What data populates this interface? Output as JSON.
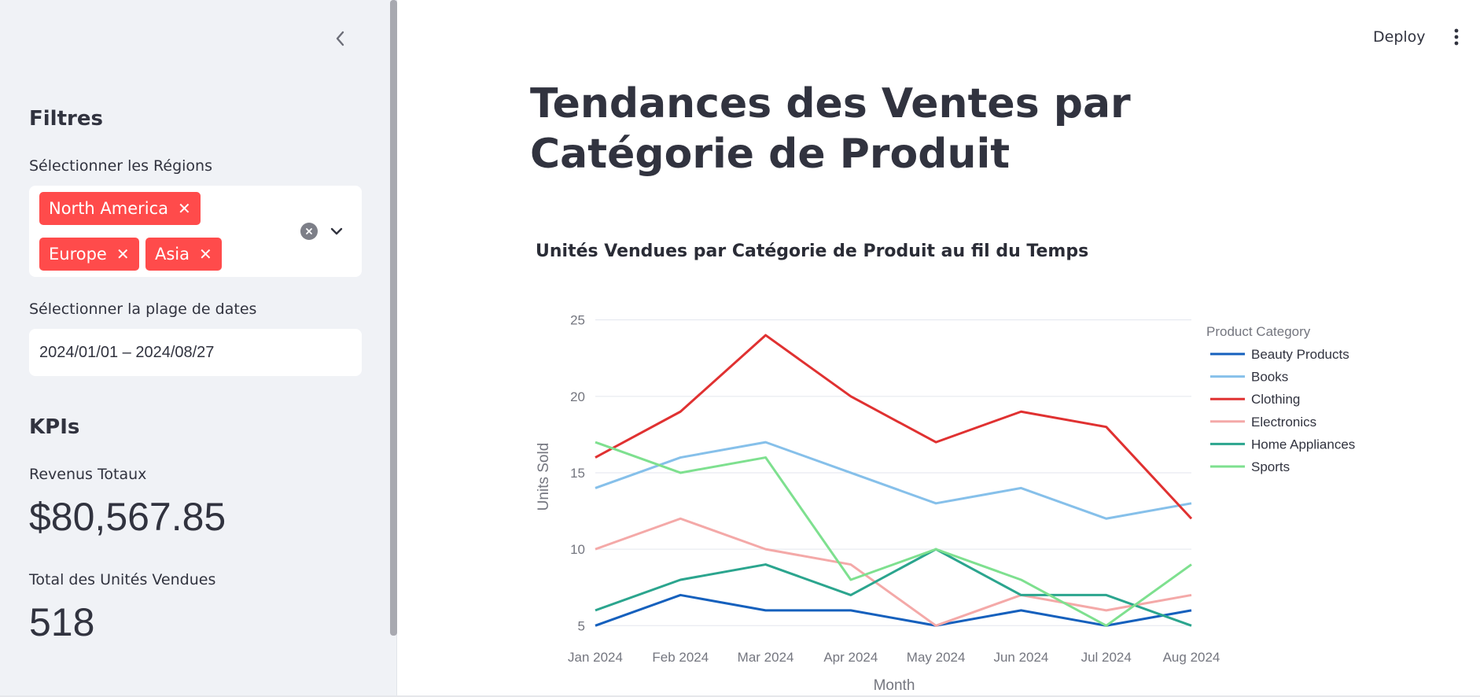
{
  "sidebar": {
    "filters_heading": "Filtres",
    "regions_label": "Sélectionner les Régions",
    "regions_selected": [
      "North America",
      "Europe",
      "Asia"
    ],
    "dates_label": "Sélectionner la plage de dates",
    "date_range_value": "2024/01/01 – 2024/08/27",
    "kpis_heading": "KPIs",
    "revenue_label": "Revenus Totaux",
    "revenue_value": "$80,567.85",
    "units_label": "Total des Unités Vendues",
    "units_value": "518"
  },
  "header": {
    "deploy_label": "Deploy"
  },
  "main": {
    "page_title": "Tendances des Ventes par Catégorie de Produit"
  },
  "icons": {
    "collapse": "chevron-left-icon",
    "clear": "clear-circle-icon",
    "dropdown": "chevron-down-icon",
    "tag_remove": "close-icon",
    "menu": "vertical-dots-icon"
  },
  "chart_data": {
    "type": "line",
    "title": "Unités Vendues par Catégorie de Produit au fil du Temps",
    "xlabel": "Month",
    "ylabel": "Units Sold",
    "legend_title": "Product Category",
    "legend_placement": "right",
    "grid": true,
    "ylim": [
      4.5,
      25.6
    ],
    "y_ticks": [
      5,
      10,
      15,
      20,
      25
    ],
    "categories": [
      "Jan 2024",
      "Feb 2024",
      "Mar 2024",
      "Apr 2024",
      "May 2024",
      "Jun 2024",
      "Jul 2024",
      "Aug 2024"
    ],
    "series": [
      {
        "name": "Beauty Products",
        "color": "#1560bd",
        "values": [
          5,
          7,
          6,
          6,
          5,
          6,
          5,
          6
        ]
      },
      {
        "name": "Books",
        "color": "#86c0ea",
        "values": [
          14,
          16,
          17,
          15,
          13,
          14,
          12,
          13
        ]
      },
      {
        "name": "Clothing",
        "color": "#e03131",
        "values": [
          16,
          19,
          24,
          20,
          17,
          19,
          18,
          12
        ]
      },
      {
        "name": "Electronics",
        "color": "#f4a9a8",
        "values": [
          10,
          12,
          10,
          9,
          5,
          7,
          6,
          7
        ]
      },
      {
        "name": "Home Appliances",
        "color": "#2ba58e",
        "values": [
          6,
          8,
          9,
          7,
          10,
          7,
          7,
          5
        ]
      },
      {
        "name": "Sports",
        "color": "#7ee08f",
        "values": [
          17,
          15,
          16,
          8,
          10,
          8,
          5,
          9
        ]
      }
    ]
  }
}
